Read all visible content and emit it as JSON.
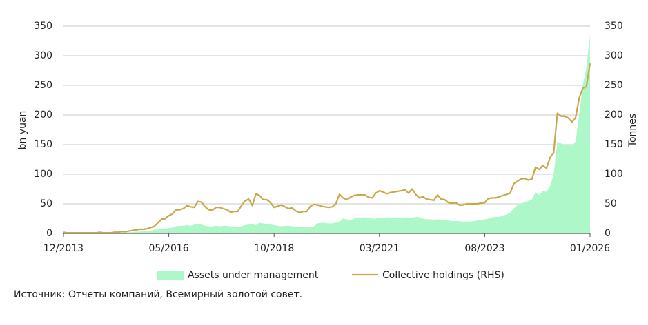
{
  "chart_data": {
    "type": "combo",
    "x": [
      "12/2013",
      "01/2014",
      "02/2014",
      "03/2014",
      "04/2014",
      "05/2014",
      "06/2014",
      "07/2014",
      "08/2014",
      "09/2014",
      "10/2014",
      "11/2014",
      "12/2014",
      "01/2015",
      "02/2015",
      "03/2015",
      "04/2015",
      "05/2015",
      "06/2015",
      "07/2015",
      "08/2015",
      "09/2015",
      "10/2015",
      "11/2015",
      "12/2015",
      "01/2016",
      "02/2016",
      "03/2016",
      "04/2016",
      "05/2016",
      "06/2016",
      "07/2016",
      "08/2016",
      "09/2016",
      "10/2016",
      "11/2016",
      "12/2016",
      "01/2017",
      "02/2017",
      "03/2017",
      "04/2017",
      "05/2017",
      "06/2017",
      "07/2017",
      "08/2017",
      "09/2017",
      "10/2017",
      "11/2017",
      "12/2017",
      "01/2018",
      "02/2018",
      "03/2018",
      "04/2018",
      "05/2018",
      "06/2018",
      "07/2018",
      "08/2018",
      "09/2018",
      "10/2018",
      "11/2018",
      "12/2018",
      "01/2019",
      "02/2019",
      "03/2019",
      "04/2019",
      "05/2019",
      "06/2019",
      "07/2019",
      "08/2019",
      "09/2019",
      "10/2019",
      "11/2019",
      "12/2019",
      "01/2020",
      "02/2020",
      "03/2020",
      "04/2020",
      "05/2020",
      "06/2020",
      "07/2020",
      "08/2020",
      "09/2020",
      "10/2020",
      "11/2020",
      "12/2020",
      "01/2021",
      "02/2021",
      "03/2021",
      "04/2021",
      "05/2021",
      "06/2021",
      "07/2021",
      "08/2021",
      "09/2021",
      "10/2021",
      "11/2021",
      "12/2021",
      "01/2022",
      "02/2022",
      "03/2022",
      "04/2022",
      "05/2022",
      "06/2022",
      "07/2022",
      "08/2022",
      "09/2022",
      "10/2022",
      "11/2022",
      "12/2022",
      "01/2023",
      "02/2023",
      "03/2023",
      "04/2023",
      "05/2023",
      "06/2023",
      "07/2023",
      "08/2023",
      "09/2023",
      "10/2023",
      "11/2023",
      "12/2023",
      "01/2024",
      "02/2024",
      "03/2024",
      "04/2024",
      "05/2024",
      "06/2024",
      "07/2024",
      "08/2024",
      "09/2024",
      "10/2024",
      "11/2024",
      "12/2024",
      "01/2025",
      "02/2025",
      "03/2025",
      "04/2025",
      "05/2025",
      "06/2025",
      "07/2025",
      "08/2025",
      "09/2025",
      "10/2025",
      "11/2025",
      "12/2025",
      "01/2026"
    ],
    "xticks": [
      "12/2013",
      "05/2016",
      "10/2018",
      "03/2021",
      "08/2023",
      "01/2026"
    ],
    "series": [
      {
        "name": "Assets under management",
        "type": "area",
        "color": "#adf7c9",
        "values": [
          0,
          0,
          0,
          0,
          0,
          0,
          0,
          0,
          0,
          1,
          1,
          1,
          1,
          1,
          1,
          1,
          1,
          2,
          2,
          2,
          3,
          3,
          4,
          4,
          5,
          6,
          7,
          7,
          8,
          9,
          10,
          12,
          13,
          13,
          14,
          13,
          15,
          16,
          15,
          13,
          12,
          12,
          13,
          12,
          13,
          13,
          12,
          12,
          11,
          12,
          14,
          15,
          16,
          14,
          18,
          17,
          16,
          15,
          14,
          13,
          12,
          13,
          13,
          12,
          12,
          11,
          11,
          10,
          11,
          12,
          17,
          18,
          18,
          17,
          17,
          18,
          20,
          25,
          24,
          22,
          25,
          26,
          27,
          27,
          26,
          25,
          25,
          26,
          26,
          27,
          27,
          26,
          26,
          26,
          27,
          27,
          26,
          28,
          27,
          25,
          24,
          24,
          23,
          24,
          23,
          22,
          22,
          21,
          21,
          21,
          20,
          20,
          20,
          21,
          22,
          22,
          24,
          25,
          27,
          28,
          28,
          30,
          32,
          35,
          42,
          48,
          50,
          53,
          55,
          57,
          70,
          65,
          72,
          70,
          80,
          100,
          155,
          152,
          150,
          150,
          148,
          155,
          200,
          250,
          280,
          335
        ]
      },
      {
        "name": "Collective holdings (RHS)",
        "type": "line",
        "axis": "y2",
        "color": "#c8a84b",
        "values": [
          2,
          1,
          1,
          1,
          1,
          1,
          1,
          1,
          1,
          1,
          2,
          1,
          1,
          1,
          2,
          2,
          3,
          3,
          4,
          5,
          6,
          7,
          7,
          8,
          10,
          12,
          18,
          24,
          25,
          30,
          33,
          40,
          40,
          42,
          47,
          45,
          44,
          54,
          53,
          45,
          40,
          39,
          44,
          44,
          42,
          40,
          36,
          37,
          37,
          47,
          55,
          58,
          47,
          67,
          64,
          57,
          57,
          52,
          44,
          46,
          48,
          45,
          42,
          43,
          38,
          35,
          37,
          37,
          46,
          49,
          48,
          46,
          45,
          44,
          45,
          50,
          66,
          60,
          57,
          61,
          64,
          65,
          65,
          65,
          61,
          60,
          68,
          72,
          70,
          67,
          69,
          70,
          71,
          72,
          74,
          68,
          75,
          66,
          60,
          62,
          58,
          57,
          56,
          65,
          58,
          57,
          52,
          51,
          52,
          48,
          48,
          50,
          50,
          50,
          50,
          51,
          52,
          59,
          60,
          60,
          62,
          64,
          66,
          68,
          84,
          88,
          92,
          93,
          90,
          92,
          112,
          108,
          115,
          110,
          128,
          137,
          203,
          198,
          198,
          195,
          188,
          195,
          228,
          245,
          248,
          287
        ]
      }
    ],
    "ylabel": "bn yuan",
    "y2label": "Tonnes",
    "ylim": [
      0,
      350
    ],
    "yticks": [
      0,
      50,
      100,
      150,
      200,
      250,
      300,
      350
    ],
    "y2lim": [
      0,
      350
    ],
    "y2ticks": [
      0,
      50,
      100,
      150,
      200,
      250,
      300,
      350
    ],
    "grid": true,
    "source": "Источник: Отчеты компаний, Всемирный золотой совет."
  }
}
